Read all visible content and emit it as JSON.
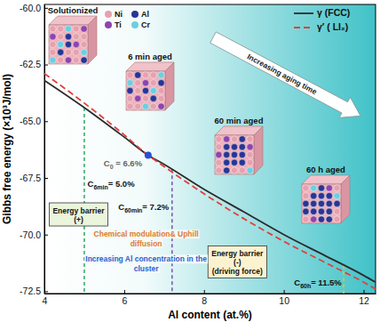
{
  "chart_data": {
    "type": "line",
    "xlabel": "Al content (at.%)",
    "ylabel": "Gibbs free energy (×10³J/mol)",
    "xlim": [
      4,
      12.3
    ],
    "xticks": [
      4,
      6,
      8,
      10,
      12
    ],
    "ylim": [
      -72.6,
      -59.85
    ],
    "yticks": [
      -72.5,
      {
        "value": -70,
        "label": "-70.0"
      },
      -67.5,
      {
        "value": -65,
        "label": "-65.0"
      },
      -62.5,
      {
        "value": -60,
        "label": "-60.0"
      }
    ],
    "grid": false,
    "legend": "upper right",
    "x": [
      4,
      5,
      6,
      6.6,
      7,
      8,
      9,
      10,
      11,
      12,
      12.3
    ],
    "series": [
      {
        "name": "γ (FCC)",
        "color": "#2b2b2b",
        "line_style": "solid",
        "values": [
          -63.2,
          -64.4,
          -65.7,
          -66.5,
          -66.9,
          -68.0,
          -69.0,
          -70.0,
          -70.9,
          -71.8,
          -72.1
        ]
      },
      {
        "name": "γ′ ( LI₂)",
        "color": "#e0403a",
        "line_style": "dashed",
        "values": [
          -62.9,
          -64.2,
          -65.6,
          -66.5,
          -67.0,
          -68.2,
          -69.3,
          -70.3,
          -71.2,
          -72.1,
          -72.4
        ]
      }
    ],
    "markers": [
      {
        "symbol": "C",
        "subscript": "6min",
        "label": "= 5.0%",
        "value": 5.0,
        "color": "#2ea866",
        "line_style": "dashed"
      },
      {
        "symbol": "C",
        "subscript": "0",
        "label": " = 6.6%",
        "value": 6.6,
        "color": "#2b4fd0",
        "marker": "circle"
      },
      {
        "symbol": "C",
        "subscript": "60min",
        "label": "= 7.2%",
        "value": 7.2,
        "color": "#7b52ab",
        "line_style": "dashed"
      },
      {
        "symbol": "C",
        "subscript": "60h",
        "label": "= 11.5%",
        "value": 11.5,
        "color": "#e0c341",
        "line_style": "dashed"
      }
    ],
    "boxes": [
      "Energy barrier (+)",
      "Energy barrier (-) (driving force)"
    ],
    "notes": [
      {
        "text": "Chemical modulation& Uphill diffusion",
        "color": "#e07b2a"
      },
      {
        "text": "Increasing Al concentration in the cluster",
        "color": "#2f5fd0"
      }
    ],
    "arrow_text": "Increasing aging time",
    "insets": [
      "Solutionized",
      "6 min aged",
      "60 min aged",
      "60 h aged"
    ],
    "atoms": [
      {
        "name": "Ni",
        "color": "#e7a1ae"
      },
      {
        "name": "Al",
        "color": "#283593"
      },
      {
        "name": "Ti",
        "color": "#8e44ad"
      },
      {
        "name": "Cr",
        "color": "#6ccfe0"
      }
    ]
  }
}
